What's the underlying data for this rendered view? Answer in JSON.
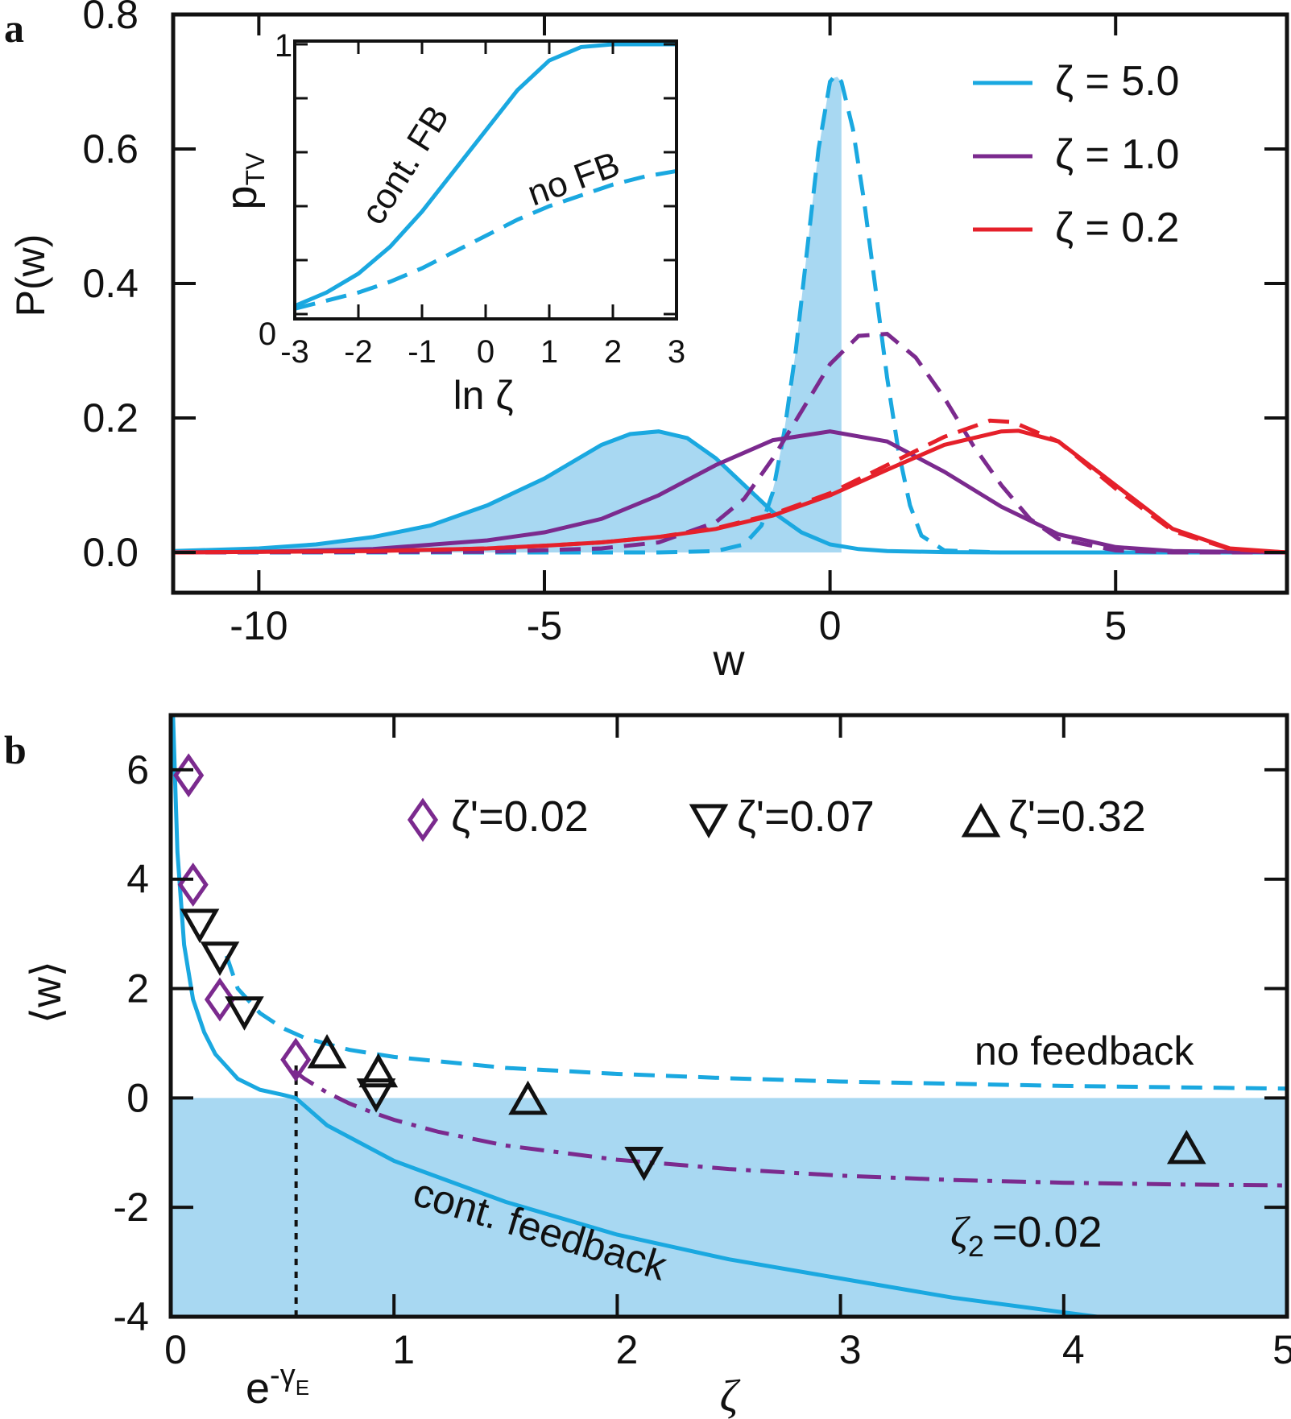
{
  "colors": {
    "cyan": "#1aa8e0",
    "purple": "#7b2a8e",
    "red": "#e5202a",
    "fill": "#a8d8f2",
    "black": "#111111"
  },
  "chart_data": [
    {
      "panel": "a",
      "type": "line",
      "xlabel": "w",
      "ylabel": "P(w)",
      "xlim": [
        -11.5,
        8
      ],
      "ylim": [
        -0.06,
        0.8
      ],
      "xticks": [
        "-10",
        "-5",
        "0",
        "5"
      ],
      "yticks": [
        "0.0",
        "0.2",
        "0.4",
        "0.6",
        "0.8"
      ],
      "legend": [
        "ζ = 5.0",
        "ζ = 1.0",
        "ζ = 0.2"
      ],
      "legend_position": "top-right",
      "series": [
        {
          "name": "ζ = 5.0",
          "style": "solid",
          "x": [
            -11.5,
            -10,
            -9,
            -8,
            -7,
            -6,
            -5,
            -4,
            -3.5,
            -3,
            -2.5,
            -2,
            -1.5,
            -1,
            -0.5,
            0,
            0.5,
            1,
            2,
            3,
            5,
            8
          ],
          "y": [
            0.002,
            0.006,
            0.012,
            0.023,
            0.04,
            0.07,
            0.11,
            0.16,
            0.176,
            0.18,
            0.17,
            0.14,
            0.1,
            0.06,
            0.03,
            0.012,
            0.005,
            0.002,
            0.0005,
            0,
            0,
            0
          ]
        },
        {
          "name": "ζ = 5.0",
          "style": "dashed",
          "x": [
            -11.5,
            -3,
            -2,
            -1.5,
            -1.2,
            -1,
            -0.8,
            -0.6,
            -0.4,
            -0.2,
            0,
            0.1,
            0.2,
            0.4,
            0.6,
            0.8,
            1,
            1.2,
            1.4,
            1.6,
            2,
            3,
            8
          ],
          "y": [
            0,
            0,
            0.002,
            0.012,
            0.04,
            0.09,
            0.18,
            0.3,
            0.45,
            0.6,
            0.7,
            0.71,
            0.7,
            0.63,
            0.52,
            0.39,
            0.26,
            0.15,
            0.07,
            0.025,
            0.003,
            0,
            0
          ]
        },
        {
          "name": "ζ = 1.0",
          "style": "solid",
          "x": [
            -11.5,
            -10,
            -8,
            -6,
            -5,
            -4,
            -3,
            -2,
            -1,
            0,
            1,
            2,
            3,
            4,
            5,
            6,
            8
          ],
          "y": [
            0,
            0.001,
            0.005,
            0.018,
            0.03,
            0.05,
            0.085,
            0.13,
            0.167,
            0.18,
            0.165,
            0.12,
            0.068,
            0.027,
            0.008,
            0.002,
            0
          ]
        },
        {
          "name": "ζ = 1.0",
          "style": "dashed",
          "x": [
            -11.5,
            -6,
            -4,
            -3,
            -2,
            -1.5,
            -1,
            -0.5,
            0,
            0.5,
            1,
            1.5,
            2,
            2.5,
            3,
            3.5,
            4,
            5,
            6,
            8
          ],
          "y": [
            0,
            0.001,
            0.006,
            0.015,
            0.045,
            0.08,
            0.14,
            0.21,
            0.28,
            0.322,
            0.325,
            0.29,
            0.23,
            0.16,
            0.1,
            0.05,
            0.02,
            0.003,
            0,
            0
          ]
        },
        {
          "name": "ζ = 0.2",
          "style": "solid",
          "x": [
            -11.5,
            -8,
            -6,
            -5,
            -4,
            -3,
            -2,
            -1,
            0,
            1,
            2,
            3,
            3.3,
            4,
            5,
            6,
            7,
            8
          ],
          "y": [
            0,
            0.002,
            0.006,
            0.01,
            0.015,
            0.023,
            0.035,
            0.055,
            0.085,
            0.123,
            0.16,
            0.18,
            0.181,
            0.165,
            0.1,
            0.035,
            0.006,
            0
          ]
        },
        {
          "name": "ζ = 0.2",
          "style": "dashed",
          "x": [
            -11.5,
            -8,
            -6,
            -5,
            -4,
            -3,
            -2,
            -1,
            0,
            1,
            2,
            2.8,
            3.2,
            4,
            5,
            6,
            7,
            8
          ],
          "y": [
            0,
            0.002,
            0.006,
            0.01,
            0.015,
            0.023,
            0.036,
            0.057,
            0.088,
            0.13,
            0.172,
            0.196,
            0.194,
            0.165,
            0.095,
            0.032,
            0.005,
            0
          ]
        }
      ],
      "shaded_region": {
        "series": "ζ = 5.0",
        "x_max": 0.2
      },
      "inset": {
        "type": "line",
        "xlabel": "ln ζ",
        "ylabel": "p",
        "ylabel_sub": "TV",
        "xlim": [
          -3,
          3
        ],
        "ylim": [
          0,
          1
        ],
        "xticks": [
          "-3",
          "-2",
          "-1",
          "0",
          "1",
          "2",
          "3"
        ],
        "yticks": [
          "0",
          "1"
        ],
        "annotations": [
          "cont. FB",
          "no FB"
        ],
        "series": [
          {
            "name": "cont. FB",
            "style": "solid",
            "x": [
              -3,
              -2.5,
              -2,
              -1.5,
              -1,
              -0.5,
              0,
              0.5,
              1,
              1.5,
              2,
              3
            ],
            "y": [
              0.03,
              0.08,
              0.15,
              0.25,
              0.38,
              0.53,
              0.68,
              0.83,
              0.94,
              0.99,
              1.0,
              1.0
            ]
          },
          {
            "name": "no FB",
            "style": "dashed",
            "x": [
              -3,
              -2.5,
              -2,
              -1.5,
              -1,
              -0.5,
              0,
              0.5,
              1,
              1.5,
              2,
              2.5,
              3
            ],
            "y": [
              0.02,
              0.05,
              0.08,
              0.12,
              0.17,
              0.23,
              0.29,
              0.35,
              0.4,
              0.44,
              0.48,
              0.51,
              0.53
            ]
          }
        ]
      }
    },
    {
      "panel": "b",
      "type": "line",
      "xlabel": "ζ",
      "ylabel": "⟨w⟩",
      "xlim": [
        0,
        5
      ],
      "ylim": [
        -4,
        7
      ],
      "xticks": [
        "0",
        "1",
        "2",
        "3",
        "4",
        "5"
      ],
      "yticks": [
        "-4",
        "-2",
        "0",
        "2",
        "4",
        "6"
      ],
      "special_tick": {
        "label": "e",
        "superscript": "-γ",
        "sub": "E",
        "x": 0.5615
      },
      "legend": [
        "ζ'=0.02",
        "ζ'=0.07",
        "ζ'=0.32"
      ],
      "legend_position": "top",
      "annotations": [
        "no feedback",
        "cont. feedback",
        "ζ",
        "2",
        "=0.02"
      ],
      "series": [
        {
          "name": "cont. feedback",
          "style": "solid",
          "x": [
            0.01,
            0.03,
            0.06,
            0.1,
            0.15,
            0.2,
            0.3,
            0.4,
            0.5,
            0.56,
            0.7,
            1,
            1.5,
            2,
            2.5,
            3,
            3.5,
            4,
            4.15
          ],
          "y": [
            7,
            4.5,
            2.8,
            1.8,
            1.2,
            0.8,
            0.35,
            0.15,
            0.06,
            0,
            -0.5,
            -1.15,
            -1.9,
            -2.5,
            -2.95,
            -3.3,
            -3.65,
            -3.92,
            -4
          ]
        },
        {
          "name": "no feedback",
          "style": "dashed",
          "x": [
            0.25,
            0.3,
            0.4,
            0.5,
            0.6,
            0.8,
            1,
            1.5,
            2,
            2.5,
            3,
            4,
            5
          ],
          "y": [
            2.6,
            2.0,
            1.55,
            1.28,
            1.1,
            0.88,
            0.75,
            0.55,
            0.44,
            0.36,
            0.3,
            0.22,
            0.17
          ]
        },
        {
          "name": "ζ₂ =0.02",
          "style": "dash-dot",
          "x": [
            0.55,
            0.6,
            0.7,
            0.8,
            0.9,
            1,
            1.2,
            1.5,
            2,
            2.5,
            3,
            3.5,
            4,
            4.5,
            5
          ],
          "y": [
            0.5,
            0.35,
            0.1,
            -0.1,
            -0.26,
            -0.4,
            -0.62,
            -0.87,
            -1.13,
            -1.3,
            -1.42,
            -1.5,
            -1.55,
            -1.58,
            -1.6
          ]
        }
      ],
      "markers": [
        {
          "name": "ζ'=0.02",
          "shape": "diamond",
          "color": "purple",
          "x": [
            0.08,
            0.1,
            0.22,
            0.56
          ],
          "y": [
            5.9,
            3.9,
            1.8,
            0.7
          ]
        },
        {
          "name": "ζ'=0.07",
          "shape": "triangle-down",
          "color": "black",
          "x": [
            0.13,
            0.22,
            0.33,
            0.92,
            2.12
          ],
          "y": [
            3.2,
            2.6,
            1.6,
            0.1,
            -1.15
          ]
        },
        {
          "name": "ζ'=0.32",
          "shape": "triangle-up",
          "color": "black",
          "x": [
            0.7,
            0.93,
            1.6,
            4.55
          ],
          "y": [
            0.8,
            0.45,
            -0.05,
            -0.95
          ]
        }
      ],
      "shaded_region": {
        "y_max": 0
      },
      "guide_line": {
        "x": 0.5615,
        "from_y": -4,
        "to_y": 0.6
      }
    }
  ],
  "panel_a": {
    "letter": "a",
    "xlabel": "w",
    "ylabel": "P(w)",
    "xticks": [
      "-10",
      "-5",
      "0",
      "5"
    ],
    "yticks": [
      "0.0",
      "0.2",
      "0.4",
      "0.6",
      "0.8"
    ],
    "legend": [
      "ζ = 5.0",
      "ζ = 1.0",
      "ζ = 0.2"
    ],
    "inset_xlabel": "ln ζ",
    "inset_ylabel": "p",
    "inset_ylabel_sub": "TV",
    "inset_xticks": [
      "-3",
      "-2",
      "-1",
      "0",
      "1",
      "2",
      "3"
    ],
    "inset_ytick_top": "1",
    "inset_ytick_bottom": "0",
    "inset_cont": "cont. FB",
    "inset_no": "no FB"
  },
  "panel_b": {
    "letter": "b",
    "xlabel": "ζ",
    "ylabel": "⟨w⟩",
    "xticks": [
      "0",
      "1",
      "2",
      "3",
      "4",
      "5"
    ],
    "yticks": [
      "-4",
      "-2",
      "0",
      "2",
      "4",
      "6"
    ],
    "special_tick_base": "e",
    "special_tick_sup": "-γ",
    "special_tick_sub": "E",
    "legend": [
      "ζ'=0.02",
      "ζ'=0.07",
      "ζ'=0.32"
    ],
    "no_feedback": "no feedback",
    "cont_feedback": "cont. feedback",
    "zeta2_symbol": "ζ",
    "zeta2_sub": "2",
    "zeta2_value": "=0.02"
  }
}
